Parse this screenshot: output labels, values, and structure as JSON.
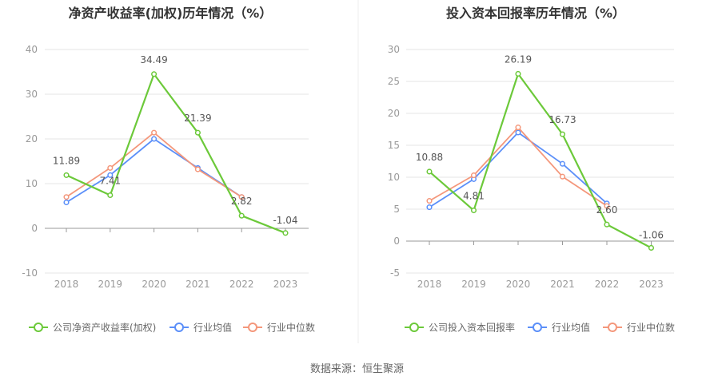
{
  "source": "数据来源：恒生聚源",
  "colors": {
    "company": "#6cc93a",
    "industry_avg": "#5b8ff9",
    "industry_median": "#f4977b"
  },
  "chart_data": [
    {
      "type": "line",
      "title": "净资产收益率(加权)历年情况（%）",
      "categories": [
        "2018",
        "2019",
        "2020",
        "2021",
        "2022",
        "2023"
      ],
      "ylim": [
        -10,
        40
      ],
      "yticks": [
        -10,
        0,
        10,
        20,
        30,
        40
      ],
      "grid": true,
      "legend_position": "bottom",
      "series": [
        {
          "name": "公司净资产收益率(加权)",
          "color": "#6cc93a",
          "values": [
            11.89,
            7.41,
            34.49,
            21.39,
            2.82,
            -1.04
          ],
          "labels": [
            "11.89",
            "7.41",
            "34.49",
            "21.39",
            "2.82",
            "-1.04"
          ]
        },
        {
          "name": "行业均值",
          "color": "#5b8ff9",
          "values": [
            5.8,
            11.9,
            20.0,
            13.5,
            7.0,
            null
          ]
        },
        {
          "name": "行业中位数",
          "color": "#f4977b",
          "values": [
            7.0,
            13.5,
            21.4,
            13.2,
            7.0,
            null
          ]
        }
      ]
    },
    {
      "type": "line",
      "title": "投入资本回报率历年情况（%）",
      "categories": [
        "2018",
        "2019",
        "2020",
        "2021",
        "2022",
        "2023"
      ],
      "ylim": [
        -5,
        30
      ],
      "yticks": [
        -5,
        0,
        5,
        10,
        15,
        20,
        25,
        30
      ],
      "grid": true,
      "legend_position": "bottom",
      "series": [
        {
          "name": "公司投入资本回报率",
          "color": "#6cc93a",
          "values": [
            10.88,
            4.81,
            26.19,
            16.73,
            2.6,
            -1.06
          ],
          "labels": [
            "10.88",
            "4.81",
            "26.19",
            "16.73",
            "2.60",
            "-1.06"
          ]
        },
        {
          "name": "行业均值",
          "color": "#5b8ff9",
          "values": [
            5.3,
            9.7,
            17.0,
            12.1,
            5.9,
            null
          ]
        },
        {
          "name": "行业中位数",
          "color": "#f4977b",
          "values": [
            6.3,
            10.3,
            17.8,
            10.1,
            5.5,
            null
          ]
        }
      ]
    }
  ]
}
